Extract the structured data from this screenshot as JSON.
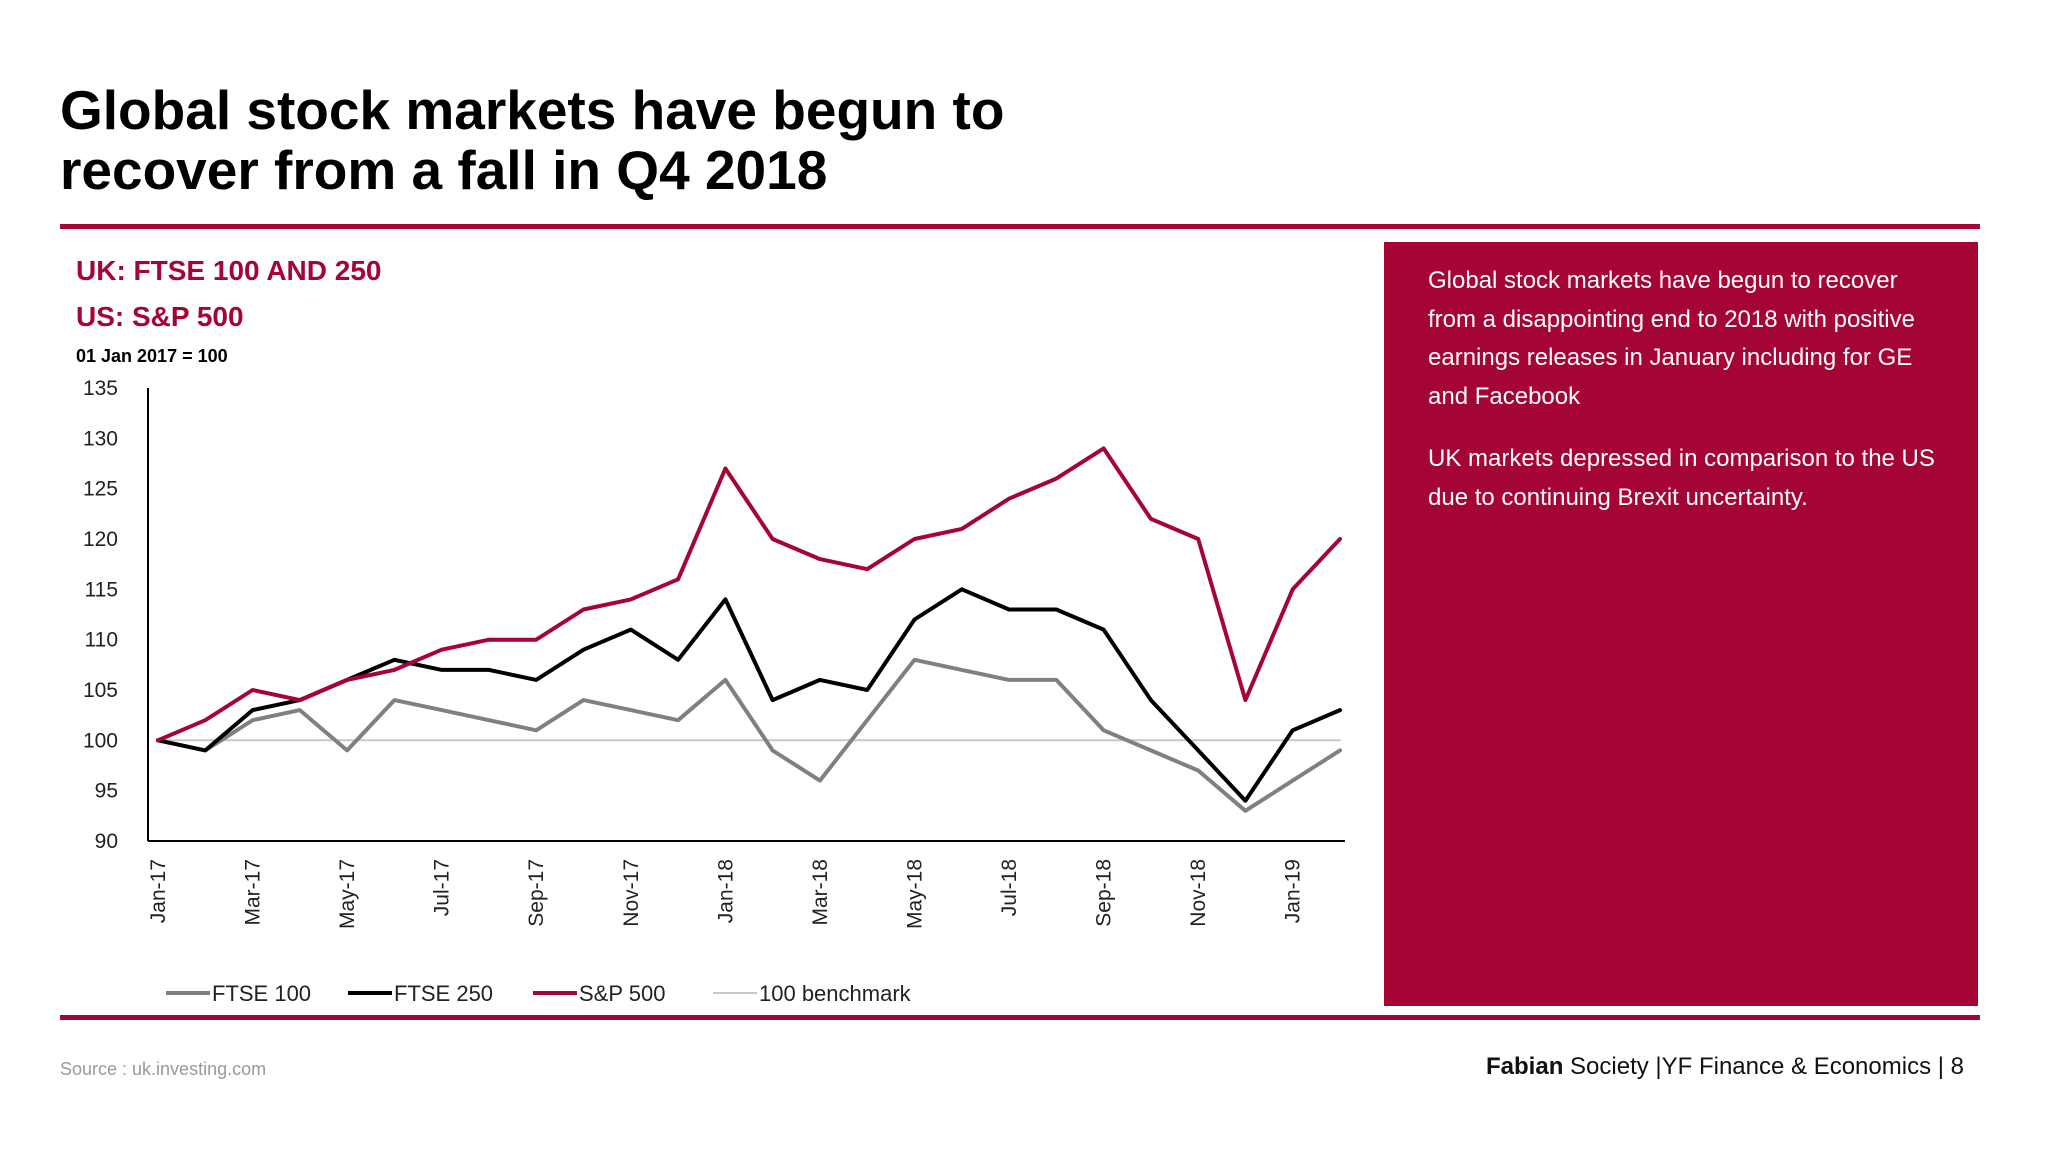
{
  "slide": {
    "title_line1": "Global stock markets have begun to",
    "title_line2": "recover from a fall in Q4 2018",
    "accent_color": "#a50535"
  },
  "chart_header": {
    "line1": "UK: FTSE 100 AND 250",
    "line2": "US: S&P 500",
    "base_note": "01 Jan 2017 = 100"
  },
  "side_panel": {
    "paragraph1": "Global stock markets have begun to recover from a disappointing end to 2018 with positive earnings releases in January including for GE and Facebook",
    "paragraph2": "UK markets depressed in comparison to the US due to continuing Brexit uncertainty."
  },
  "footer": {
    "source": "Source : uk.investing.com",
    "brand_bold": "Fabian",
    "brand_rest": " Society |YF Finance & Economics | 8"
  },
  "chart_data": {
    "type": "line",
    "title": "",
    "xlabel": "",
    "ylabel": "",
    "ylim": [
      90,
      135
    ],
    "yticks": [
      90,
      95,
      100,
      105,
      110,
      115,
      120,
      125,
      130,
      135
    ],
    "xlim": [
      "2017-01",
      "2019-02"
    ],
    "xticks": [
      "Jan-17",
      "Mar-17",
      "May-17",
      "Jul-17",
      "Sep-17",
      "Nov-17",
      "Jan-18",
      "Mar-18",
      "May-18",
      "Jul-18",
      "Sep-18",
      "Nov-18",
      "Jan-19"
    ],
    "grid": false,
    "legend_position": "bottom",
    "x": [
      "2017-01",
      "2017-02",
      "2017-03",
      "2017-04",
      "2017-05",
      "2017-06",
      "2017-07",
      "2017-08",
      "2017-09",
      "2017-10",
      "2017-11",
      "2017-12",
      "2018-01",
      "2018-02",
      "2018-03",
      "2018-04",
      "2018-05",
      "2018-06",
      "2018-07",
      "2018-08",
      "2018-09",
      "2018-10",
      "2018-11",
      "2018-12",
      "2019-01",
      "2019-02"
    ],
    "series": [
      {
        "name": "FTSE 100",
        "color": "#808080",
        "width": 4,
        "values": [
          100,
          99,
          102,
          103,
          99,
          104,
          103,
          102,
          101,
          104,
          103,
          102,
          106,
          99,
          96,
          102,
          108,
          107,
          106,
          106,
          101,
          99,
          97,
          93,
          96,
          99
        ]
      },
      {
        "name": "FTSE 250",
        "color": "#000000",
        "width": 4,
        "values": [
          100,
          99,
          103,
          104,
          106,
          108,
          107,
          107,
          106,
          109,
          111,
          108,
          114,
          104,
          106,
          105,
          112,
          115,
          113,
          113,
          111,
          104,
          99,
          94,
          101,
          103
        ]
      },
      {
        "name": "S&P 500",
        "color": "#a50535",
        "width": 4,
        "values": [
          100,
          102,
          105,
          104,
          106,
          107,
          109,
          110,
          110,
          113,
          114,
          116,
          127,
          120,
          118,
          117,
          120,
          121,
          124,
          126,
          129,
          122,
          120,
          104,
          115,
          120
        ]
      },
      {
        "name": "100 benchmark",
        "color": "#c8c8c8",
        "width": 2,
        "values": [
          100,
          100,
          100,
          100,
          100,
          100,
          100,
          100,
          100,
          100,
          100,
          100,
          100,
          100,
          100,
          100,
          100,
          100,
          100,
          100,
          100,
          100,
          100,
          100,
          100,
          100
        ]
      }
    ]
  }
}
